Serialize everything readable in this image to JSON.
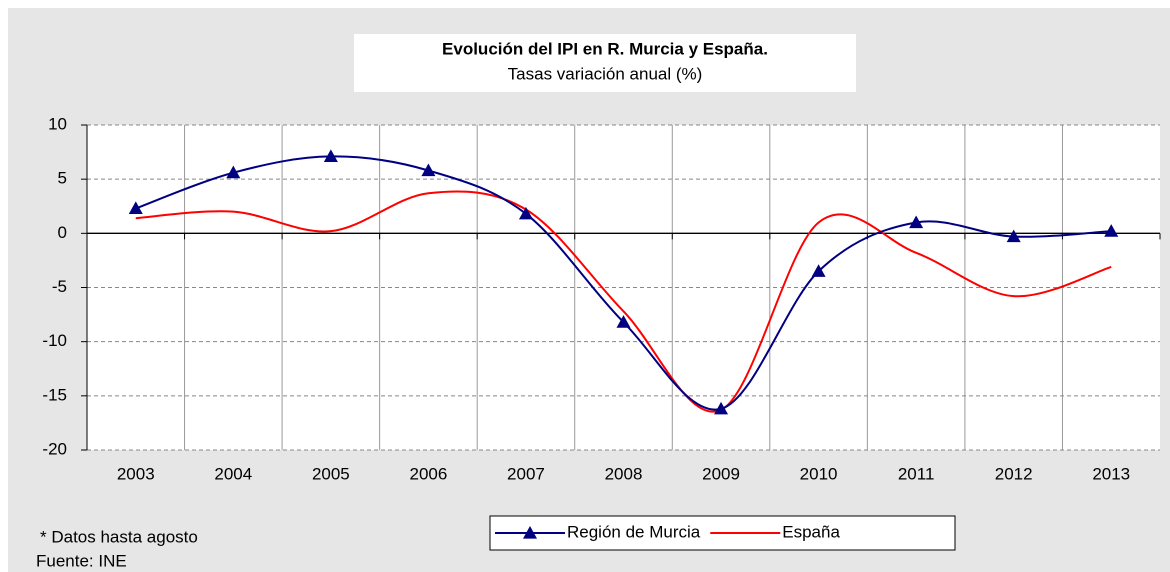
{
  "chart_data": {
    "type": "line",
    "title": "Evolución del IPI en R. Murcia y España.",
    "subtitle": "Tasas variación anual (%)",
    "categories": [
      "2003",
      "2004",
      "2005",
      "2006",
      "2007",
      "2008",
      "2009",
      "2010",
      "2011",
      "2012",
      "2013"
    ],
    "series": [
      {
        "name": "Región de Murcia",
        "color": "#000080",
        "marker": "triangle",
        "values": [
          2.3,
          5.6,
          7.1,
          5.8,
          1.8,
          -8.2,
          -16.2,
          -3.5,
          1.0,
          -0.3,
          0.2
        ]
      },
      {
        "name": "España",
        "color": "#ff0000",
        "values": [
          1.4,
          2.0,
          0.2,
          3.7,
          2.2,
          -7.2,
          -16.3,
          1.0,
          -1.8,
          -5.8,
          -3.1
        ]
      }
    ],
    "ylim": [
      -20,
      10
    ],
    "yticks": [
      -20,
      -15,
      -10,
      -5,
      0,
      5,
      10
    ],
    "grid": true,
    "legend": "bottom",
    "notes": [
      "* Datos hasta agosto",
      "Fuente: INE"
    ]
  }
}
